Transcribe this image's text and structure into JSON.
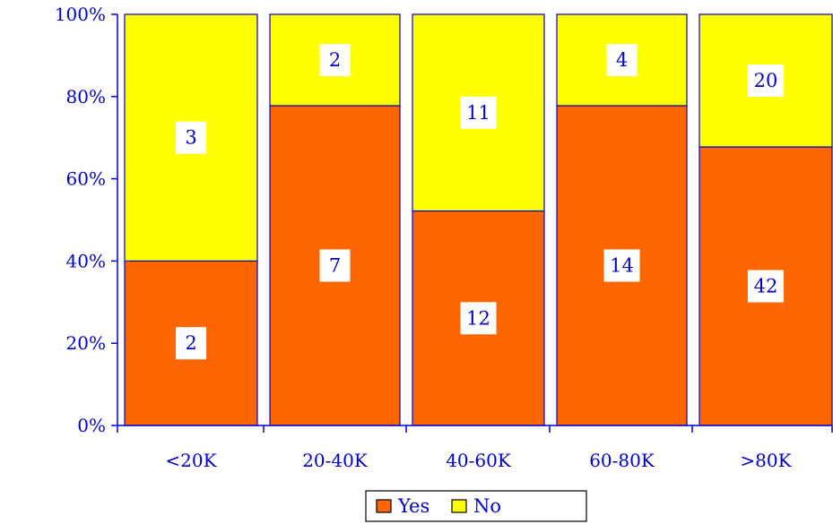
{
  "chart_data": {
    "type": "bar",
    "stacked": true,
    "normalized": true,
    "categories": [
      "<20K",
      "20-40K",
      "40-60K",
      "60-80K",
      ">80K"
    ],
    "series": [
      {
        "name": "Yes",
        "values": [
          2,
          7,
          12,
          14,
          42
        ],
        "color": "#ff6600"
      },
      {
        "name": "No",
        "values": [
          3,
          2,
          11,
          4,
          20
        ],
        "color": "#ffff00"
      }
    ],
    "yticks": [
      "0%",
      "20%",
      "40%",
      "60%",
      "80%",
      "100%"
    ],
    "ylim": [
      0,
      100
    ],
    "legend_position": "bottom",
    "colors": {
      "axis": "#0000cc",
      "text": "#0000cc",
      "bar_border": "#0000cc"
    }
  }
}
